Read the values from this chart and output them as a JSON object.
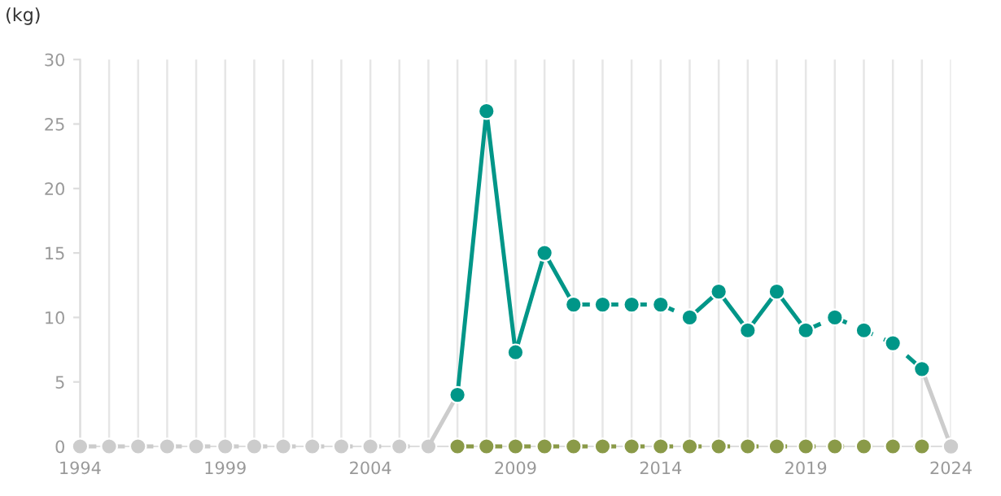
{
  "chart_data": {
    "type": "line",
    "ylabel": "(kg)",
    "series": [
      {
        "color": "#cccccc",
        "line_style": "dashed",
        "marker": "circle",
        "x": [
          1994,
          1995,
          1996,
          1997,
          1998,
          1999,
          2000,
          2001,
          2002,
          2003,
          2004,
          2005,
          2006
        ],
        "values": [
          0,
          0,
          0,
          0,
          0,
          0,
          0,
          0,
          0,
          0,
          0,
          0,
          0
        ]
      },
      {
        "color": "#cccccc",
        "line_style": "solid",
        "marker": "none",
        "x": [
          2006,
          2007
        ],
        "values": [
          0,
          4
        ]
      },
      {
        "color": "#cccccc",
        "line_style": "solid",
        "marker": "none",
        "x": [
          2023,
          2024
        ],
        "values": [
          6,
          0
        ]
      },
      {
        "color": "#cccccc",
        "type": "scatter",
        "marker": "circle",
        "x": [
          2024
        ],
        "values": [
          0
        ]
      },
      {
        "color": "#8a9a48",
        "line_style": "dashed",
        "marker": "circle",
        "x": [
          2007,
          2008,
          2009,
          2010,
          2011,
          2012,
          2013,
          2014,
          2015,
          2016,
          2017,
          2018,
          2019,
          2020,
          2021,
          2022,
          2023
        ],
        "values": [
          0,
          0,
          0,
          0,
          0,
          0,
          0,
          0,
          0,
          0,
          0,
          0,
          0,
          0,
          0,
          0,
          0
        ]
      },
      {
        "color": "#009688",
        "line_style": "solid",
        "marker": "circle",
        "x": [
          2007,
          2008,
          2009,
          2010,
          2011
        ],
        "values": [
          4,
          26,
          7.3,
          15,
          11
        ]
      },
      {
        "color": "#009688",
        "line_style": "dashed",
        "marker": "circle",
        "x": [
          2011,
          2012,
          2013,
          2014,
          2015
        ],
        "values": [
          11,
          11,
          11,
          11,
          10
        ]
      },
      {
        "color": "#009688",
        "line_style": "solid",
        "marker": "circle",
        "x": [
          2015,
          2016,
          2017,
          2018,
          2019
        ],
        "values": [
          10,
          12,
          9,
          12,
          9
        ]
      },
      {
        "color": "#009688",
        "line_style": "dashed",
        "marker": "circle",
        "x": [
          2019,
          2020,
          2021,
          2022,
          2023
        ],
        "values": [
          9,
          10,
          9,
          8,
          6
        ]
      }
    ],
    "xlim": [
      1994,
      2024
    ],
    "xticks": [
      1994,
      {
        "value": 1995,
        "label": null
      },
      {
        "value": 1996,
        "label": null
      },
      {
        "value": 1997,
        "label": null
      },
      {
        "value": 1998,
        "label": null
      },
      1999,
      {
        "value": 2000,
        "label": null
      },
      {
        "value": 2001,
        "label": null
      },
      {
        "value": 2002,
        "label": null
      },
      {
        "value": 2003,
        "label": null
      },
      2004,
      {
        "value": 2005,
        "label": null
      },
      {
        "value": 2006,
        "label": null
      },
      {
        "value": 2007,
        "label": null
      },
      {
        "value": 2008,
        "label": null
      },
      2009,
      {
        "value": 2010,
        "label": null
      },
      {
        "value": 2011,
        "label": null
      },
      {
        "value": 2012,
        "label": null
      },
      {
        "value": 2013,
        "label": null
      },
      2014,
      {
        "value": 2015,
        "label": null
      },
      {
        "value": 2016,
        "label": null
      },
      {
        "value": 2017,
        "label": null
      },
      {
        "value": 2018,
        "label": null
      },
      2019,
      {
        "value": 2020,
        "label": null
      },
      {
        "value": 2021,
        "label": null
      },
      {
        "value": 2022,
        "label": null
      },
      {
        "value": 2023,
        "label": null
      },
      2024
    ],
    "ylim": [
      0,
      30
    ],
    "yticks": [
      0,
      5,
      10,
      15,
      20,
      25,
      30
    ],
    "grid": "x",
    "legend": false
  }
}
